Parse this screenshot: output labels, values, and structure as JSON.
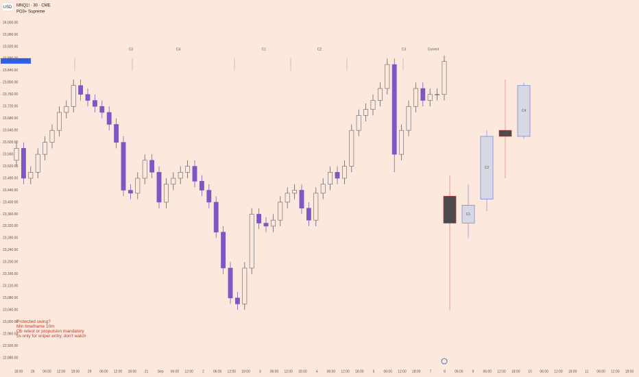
{
  "header": {
    "currency": "USD",
    "symbol": "MNQ1! · 30 · CME",
    "indicator": "PO3+ Supreme"
  },
  "chart_data": {
    "type": "candlestick",
    "up_color": "#5d606b",
    "down_color": "#7e57c2",
    "open": [
      23540,
      23580,
      23480,
      23500,
      23560,
      23600,
      23640,
      23700,
      23720,
      23790,
      23760,
      23740,
      23720,
      23700,
      23660,
      23600,
      23440,
      23430,
      23480,
      23540,
      23500,
      23400,
      23460,
      23480,
      23500,
      23520,
      23470,
      23440,
      23400,
      23300,
      23180,
      23080,
      23060,
      23180,
      23360,
      23330,
      23320,
      23340,
      23400,
      23430,
      23440,
      23380,
      23340,
      23430,
      23460,
      23500,
      23480,
      23520,
      23640,
      23690,
      23710,
      23740,
      23780,
      23860,
      23560,
      23640,
      23720,
      23780,
      23740,
      23760,
      23760
    ],
    "high": [
      23600,
      23600,
      23520,
      23580,
      23620,
      23660,
      23720,
      23740,
      23810,
      23810,
      23780,
      23760,
      23740,
      23720,
      23680,
      23620,
      23460,
      23500,
      23560,
      23560,
      23520,
      23480,
      23500,
      23520,
      23540,
      23540,
      23490,
      23460,
      23420,
      23320,
      23200,
      23100,
      23200,
      23380,
      23380,
      23350,
      23360,
      23420,
      23450,
      23460,
      23460,
      23400,
      23450,
      23480,
      23520,
      23520,
      23540,
      23660,
      23710,
      23730,
      23760,
      23800,
      23880,
      23880,
      23660,
      23740,
      23800,
      23800,
      23780,
      23780,
      23890
    ],
    "low": [
      23520,
      23460,
      23460,
      23480,
      23540,
      23580,
      23620,
      23680,
      23700,
      23740,
      23720,
      23700,
      23680,
      23640,
      23580,
      23420,
      23410,
      23410,
      23460,
      23480,
      23380,
      23380,
      23440,
      23460,
      23480,
      23450,
      23420,
      23380,
      23280,
      23160,
      23060,
      23040,
      23040,
      23160,
      23310,
      23300,
      23300,
      23320,
      23380,
      23410,
      23360,
      23320,
      23320,
      23410,
      23440,
      23460,
      23460,
      23500,
      23620,
      23670,
      23690,
      23720,
      23760,
      23500,
      23540,
      23620,
      23700,
      23720,
      23720,
      23740,
      23740
    ],
    "close": [
      23580,
      23480,
      23500,
      23560,
      23600,
      23640,
      23700,
      23720,
      23790,
      23760,
      23740,
      23720,
      23700,
      23660,
      23600,
      23440,
      23430,
      23480,
      23540,
      23500,
      23400,
      23460,
      23480,
      23500,
      23520,
      23470,
      23440,
      23400,
      23300,
      23180,
      23080,
      23060,
      23180,
      23360,
      23330,
      23320,
      23340,
      23400,
      23430,
      23440,
      23380,
      23340,
      23430,
      23460,
      23500,
      23480,
      23520,
      23640,
      23690,
      23710,
      23740,
      23780,
      23860,
      23560,
      23640,
      23720,
      23780,
      23740,
      23760,
      23760,
      23870
    ],
    "ylim": [
      22880,
      24000
    ],
    "yticks": [
      {
        "value": 24000,
        "label": "24,000.00"
      },
      {
        "value": 23960,
        "label": "23,960.00"
      },
      {
        "value": 23920,
        "label": "23,920.00"
      },
      {
        "value": 23880,
        "label": "23,880.00"
      },
      {
        "value": 23840,
        "label": "23,840.00"
      },
      {
        "value": 23800,
        "label": "23,800.00"
      },
      {
        "value": 23760,
        "label": "23,760.00"
      },
      {
        "value": 23720,
        "label": "23,720.00"
      },
      {
        "value": 23680,
        "label": "23,680.00"
      },
      {
        "value": 23640,
        "label": "23,640.00"
      },
      {
        "value": 23600,
        "label": "23,600.00"
      },
      {
        "value": 23560,
        "label": "23,560.00"
      },
      {
        "value": 23520,
        "label": "23,520.00"
      },
      {
        "value": 23480,
        "label": "23,480.00"
      },
      {
        "value": 23440,
        "label": "23,440.00"
      },
      {
        "value": 23400,
        "label": "23,400.00"
      },
      {
        "value": 23360,
        "label": "23,360.00"
      },
      {
        "value": 23320,
        "label": "23,320.00"
      },
      {
        "value": 23280,
        "label": "23,280.00"
      },
      {
        "value": 23240,
        "label": "23,240.00"
      },
      {
        "value": 23200,
        "label": "23,200.00"
      },
      {
        "value": 23160,
        "label": "23,160.00"
      },
      {
        "value": 23120,
        "label": "23,120.00"
      },
      {
        "value": 23080,
        "label": "23,080.00"
      },
      {
        "value": 23040,
        "label": "23,040.00"
      },
      {
        "value": 23000,
        "label": "23,000.00"
      },
      {
        "value": 22960,
        "label": "22,960.00"
      },
      {
        "value": 22920,
        "label": "22,920.00"
      },
      {
        "value": 22880,
        "label": "22,880.00"
      }
    ],
    "time_labels": [
      "18:00",
      "26",
      "06:00",
      "12:00",
      "18:00",
      "29",
      "06:00",
      "12:00",
      "18:00",
      "21",
      "Sep",
      "06:00",
      "12:00",
      "2",
      "06:00",
      "12:00",
      "18:00",
      "3",
      "06:00",
      "12:00",
      "18:00",
      "4",
      "06:00",
      "12:00",
      "18:00",
      "5",
      "06:00",
      "12:00",
      "18:00",
      "7",
      "8",
      "06:00",
      "9",
      "06:00",
      "12:00",
      "18:00",
      "10",
      "06:00",
      "12:00",
      "18:00",
      "11",
      "06:00",
      "12:00",
      "18:00"
    ],
    "last_price": {
      "value": 23872,
      "label": "23,872.00",
      "symbol": "MNQ1!"
    },
    "session_labels": [
      "C3",
      "C4",
      "C1",
      "C2",
      "C3",
      "Current"
    ],
    "htf_candles": {
      "labels": [
        "C4",
        "C1",
        "C2",
        "C3",
        "C4"
      ],
      "open": [
        23420,
        23330,
        23410,
        23640,
        23620
      ],
      "high": [
        23490,
        23460,
        23640,
        23810,
        23800
      ],
      "low": [
        23040,
        23280,
        23370,
        23480,
        23610
      ],
      "close": [
        23330,
        23390,
        23620,
        23620,
        23790
      ]
    },
    "annotation": [
      "Protected swing?",
      "Min timeframe 10m",
      "Ob retest or propulsion mandatory",
      "5s only for sniper entry, don't watch"
    ]
  }
}
